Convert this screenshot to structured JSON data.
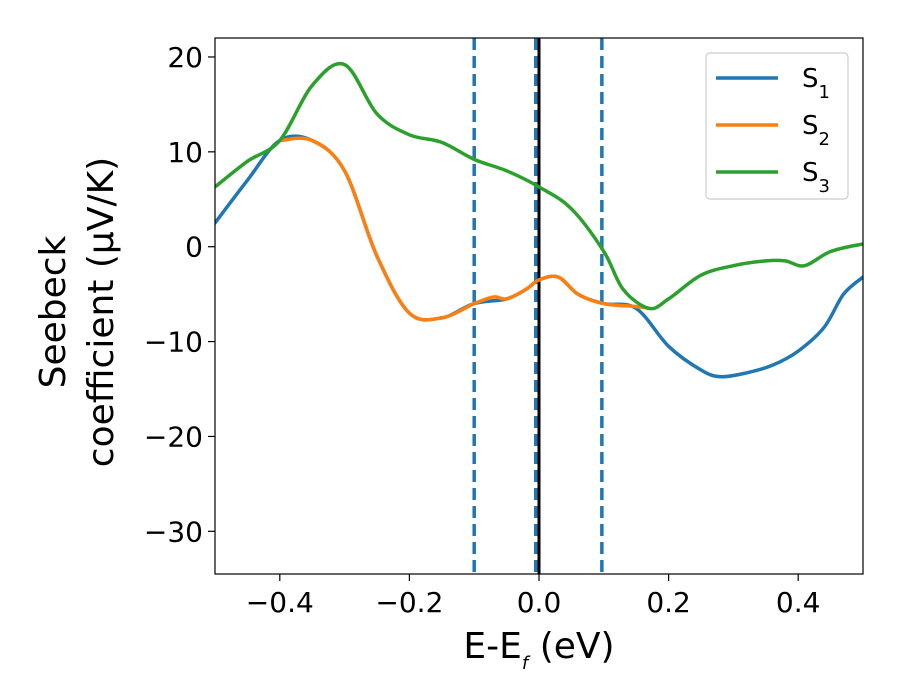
{
  "chart_data": {
    "type": "line",
    "xlabel_main": "E-E",
    "xlabel_sub": "f",
    "xlabel_unit": " (eV)",
    "ylabel_line1": "Seebeck",
    "ylabel_line2": "coefficient  (μV/K)",
    "xlim": [
      -0.5,
      0.5
    ],
    "ylim": [
      -34.5,
      22
    ],
    "xticks": [
      -0.4,
      -0.2,
      0.0,
      0.2,
      0.4
    ],
    "xtick_labels": [
      "−0.4",
      "−0.2",
      "0.0",
      "0.2",
      "0.4"
    ],
    "yticks": [
      -30,
      -20,
      -10,
      0,
      10,
      20
    ],
    "ytick_labels": [
      "−30",
      "−20",
      "−10",
      "0",
      "10",
      "20"
    ],
    "grid": false,
    "legend_position": "top-right",
    "vertical_lines": [
      {
        "x": -0.1,
        "style": "dashed",
        "color": "#1f77b4"
      },
      {
        "x": -0.005,
        "style": "dashed",
        "color": "#1f77b4"
      },
      {
        "x": 0.0,
        "style": "solid",
        "color": "#000000"
      },
      {
        "x": 0.097,
        "style": "dashed",
        "color": "#1f77b4"
      }
    ],
    "series": [
      {
        "name": "S",
        "sub": "1",
        "color": "#1f77b4",
        "points": [
          [
            -0.5,
            2.5
          ],
          [
            -0.45,
            7
          ],
          [
            -0.4,
            11.2
          ],
          [
            -0.35,
            11.2
          ],
          [
            -0.3,
            8
          ],
          [
            -0.25,
            -1
          ],
          [
            -0.2,
            -7
          ],
          [
            -0.15,
            -7.5
          ],
          [
            -0.1,
            -6
          ],
          [
            -0.05,
            -5.5
          ],
          [
            -0.02,
            -4.5
          ],
          [
            0.0,
            -3.5
          ],
          [
            0.03,
            -3.2
          ],
          [
            0.06,
            -5
          ],
          [
            0.1,
            -6
          ],
          [
            0.15,
            -6.5
          ],
          [
            0.2,
            -10.5
          ],
          [
            0.25,
            -13
          ],
          [
            0.28,
            -13.7
          ],
          [
            0.32,
            -13.3
          ],
          [
            0.36,
            -12.5
          ],
          [
            0.4,
            -11
          ],
          [
            0.44,
            -8.5
          ],
          [
            0.47,
            -5
          ],
          [
            0.5,
            -3.2
          ]
        ]
      },
      {
        "name": "S",
        "sub": "2",
        "color": "#ff7f0e",
        "points": [
          [
            -0.4,
            11.2
          ],
          [
            -0.35,
            11.2
          ],
          [
            -0.3,
            8
          ],
          [
            -0.25,
            -1
          ],
          [
            -0.2,
            -7
          ],
          [
            -0.15,
            -7.5
          ],
          [
            -0.1,
            -6
          ],
          [
            -0.07,
            -5.3
          ],
          [
            -0.05,
            -5.5
          ],
          [
            -0.02,
            -4.5
          ],
          [
            0.0,
            -3.5
          ],
          [
            0.03,
            -3.2
          ],
          [
            0.06,
            -5
          ],
          [
            0.1,
            -6
          ],
          [
            0.15,
            -6.3
          ],
          [
            0.17,
            -6.5
          ]
        ]
      },
      {
        "name": "S",
        "sub": "3",
        "color": "#2ca02c",
        "points": [
          [
            -0.5,
            6.3
          ],
          [
            -0.45,
            9
          ],
          [
            -0.4,
            11.2
          ],
          [
            -0.35,
            17
          ],
          [
            -0.3,
            19.2
          ],
          [
            -0.25,
            14
          ],
          [
            -0.2,
            11.8
          ],
          [
            -0.15,
            11
          ],
          [
            -0.1,
            9.2
          ],
          [
            -0.05,
            8
          ],
          [
            0.0,
            6.3
          ],
          [
            0.05,
            4
          ],
          [
            0.1,
            -0.5
          ],
          [
            0.13,
            -4.5
          ],
          [
            0.17,
            -6.5
          ],
          [
            0.2,
            -5.5
          ],
          [
            0.25,
            -3
          ],
          [
            0.3,
            -2
          ],
          [
            0.35,
            -1.5
          ],
          [
            0.38,
            -1.5
          ],
          [
            0.41,
            -2
          ],
          [
            0.45,
            -0.5
          ],
          [
            0.5,
            0.3
          ]
        ]
      }
    ]
  }
}
